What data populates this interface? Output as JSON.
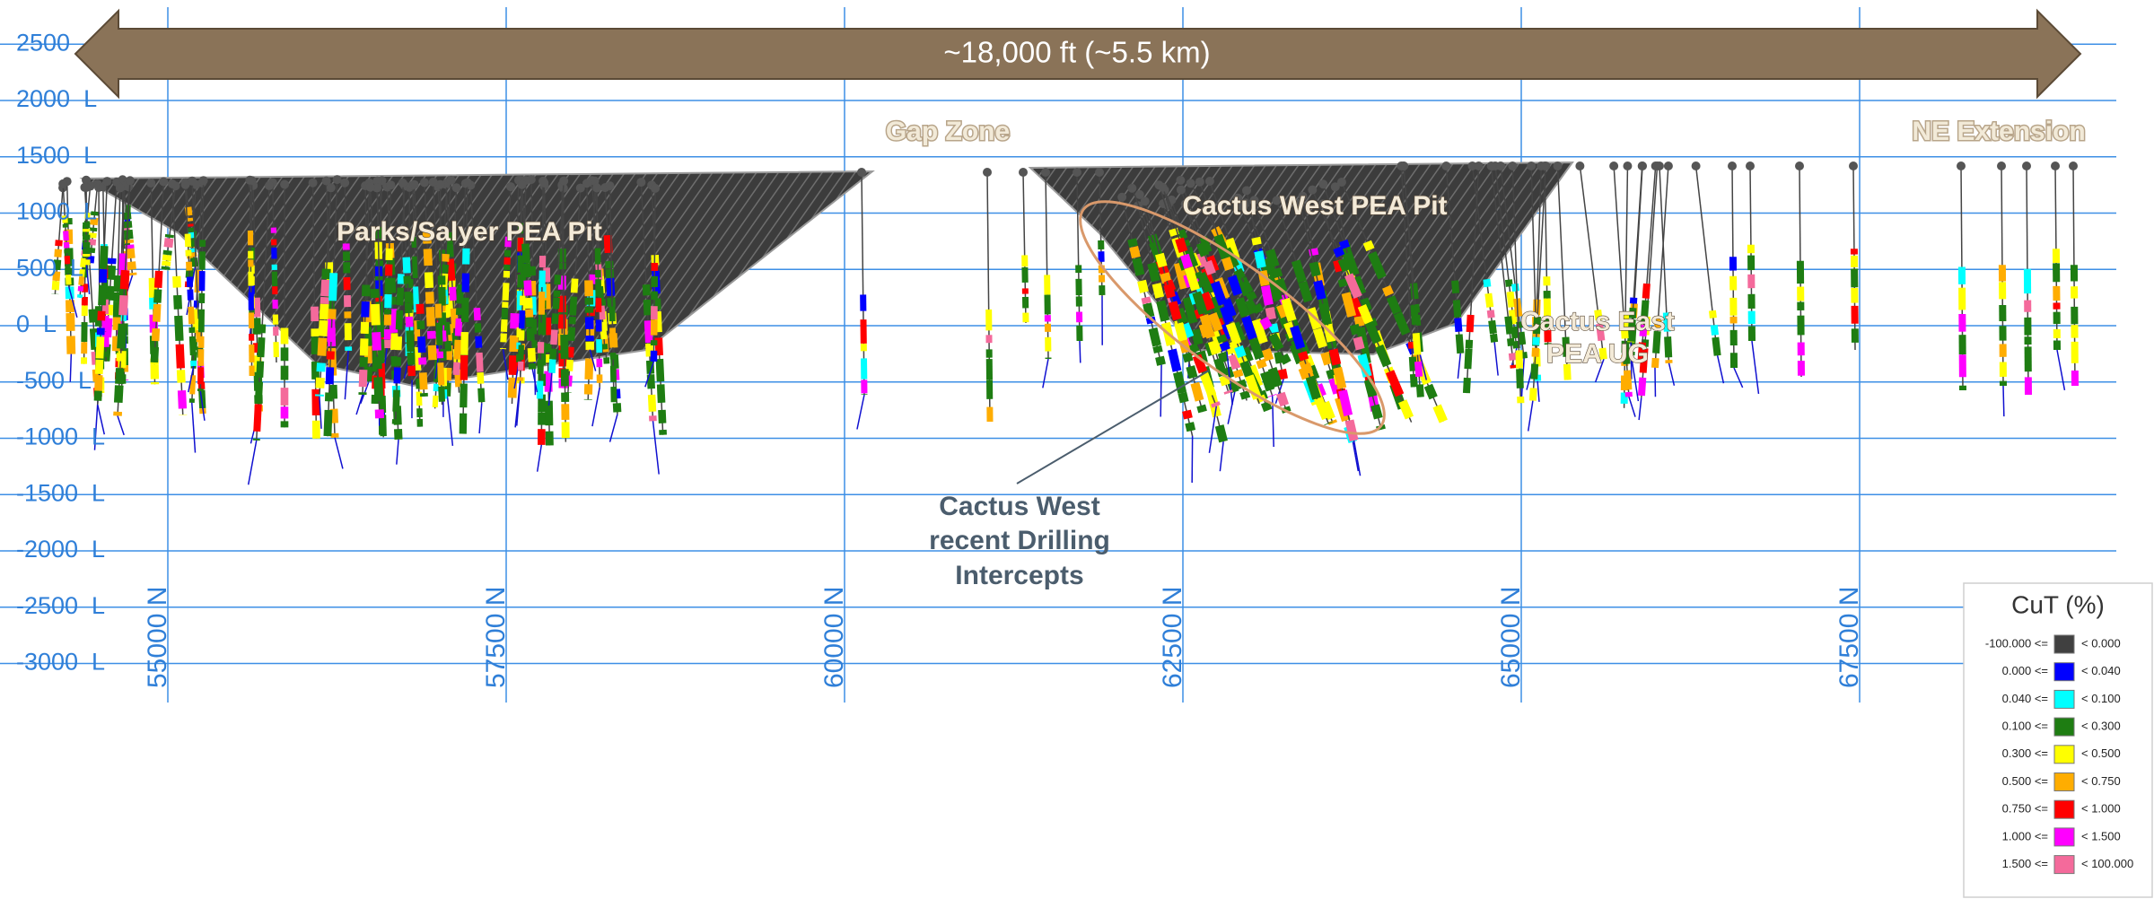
{
  "banner": {
    "label": "~18,000 ft (~5.5 km)"
  },
  "elevation_axis": {
    "ticks": [
      {
        "value": 2500,
        "label": "2500"
      },
      {
        "value": 2000,
        "label": "2000  L"
      },
      {
        "value": 1500,
        "label": "1500  L"
      },
      {
        "value": 1000,
        "label": "1000  L"
      },
      {
        "value": 500,
        "label": "500  L"
      },
      {
        "value": 0,
        "label": "0  L"
      },
      {
        "value": -500,
        "label": "-500  L"
      },
      {
        "value": -1000,
        "label": "-1000  L"
      },
      {
        "value": -1500,
        "label": "-1500  L"
      },
      {
        "value": -2000,
        "label": "-2000  L"
      },
      {
        "value": -2500,
        "label": "-2500  L"
      },
      {
        "value": -3000,
        "label": "-3000  L"
      }
    ]
  },
  "northing_axis": {
    "ticks": [
      {
        "value": 55000,
        "label": "55000 N"
      },
      {
        "value": 57500,
        "label": "57500 N"
      },
      {
        "value": 60000,
        "label": "60000 N"
      },
      {
        "value": 62500,
        "label": "62500 N"
      },
      {
        "value": 65000,
        "label": "65000 N"
      },
      {
        "value": 67500,
        "label": "67500 N"
      }
    ]
  },
  "zones": [
    {
      "lines": [
        "Gap Zone"
      ]
    },
    {
      "lines": [
        "NE Extension"
      ]
    },
    {
      "lines": [
        "Parks/Salyer PEA Pit"
      ]
    },
    {
      "lines": [
        "Cactus West PEA Pit"
      ]
    },
    {
      "lines": [
        "Cactus East",
        "PEA UG"
      ]
    }
  ],
  "callout": {
    "lines": [
      "Cactus West",
      "recent Drilling",
      "Intercepts"
    ]
  },
  "legend": {
    "title": "CuT (%)",
    "rows": [
      {
        "from": "-100.000 <=",
        "color": "#404040",
        "to": "< 0.000"
      },
      {
        "from": "0.000 <=",
        "color": "#0000ff",
        "to": "< 0.040"
      },
      {
        "from": "0.040 <=",
        "color": "#00ffff",
        "to": "< 0.100"
      },
      {
        "from": "0.100 <=",
        "color": "#1e7d12",
        "to": "< 0.300"
      },
      {
        "from": "0.300 <=",
        "color": "#ffff00",
        "to": "< 0.500"
      },
      {
        "from": "0.500 <=",
        "color": "#ffad00",
        "to": "< 0.750"
      },
      {
        "from": "0.750 <=",
        "color": "#ff0000",
        "to": "< 1.000"
      },
      {
        "from": "1.000 <=",
        "color": "#ff00ff",
        "to": "< 1.500"
      },
      {
        "from": "1.500 <=",
        "color": "#f46a9b",
        "to": "< 100.000"
      }
    ]
  }
}
